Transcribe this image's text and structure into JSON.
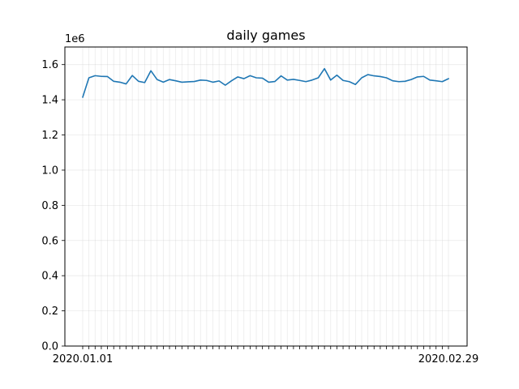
{
  "chart_data": {
    "type": "line",
    "title": "daily games",
    "xlabel": "",
    "ylabel": "",
    "y_offset_label": "1e6",
    "x": [
      "2020.01.01",
      "2020.01.02",
      "2020.01.03",
      "2020.01.04",
      "2020.01.05",
      "2020.01.06",
      "2020.01.07",
      "2020.01.08",
      "2020.01.09",
      "2020.01.10",
      "2020.01.11",
      "2020.01.12",
      "2020.01.13",
      "2020.01.14",
      "2020.01.15",
      "2020.01.16",
      "2020.01.17",
      "2020.01.18",
      "2020.01.19",
      "2020.01.20",
      "2020.01.21",
      "2020.01.22",
      "2020.01.23",
      "2020.01.24",
      "2020.01.25",
      "2020.01.26",
      "2020.01.27",
      "2020.01.28",
      "2020.01.29",
      "2020.01.30",
      "2020.01.31",
      "2020.02.01",
      "2020.02.02",
      "2020.02.03",
      "2020.02.04",
      "2020.02.05",
      "2020.02.06",
      "2020.02.07",
      "2020.02.08",
      "2020.02.09",
      "2020.02.10",
      "2020.02.11",
      "2020.02.12",
      "2020.02.13",
      "2020.02.14",
      "2020.02.15",
      "2020.02.16",
      "2020.02.17",
      "2020.02.18",
      "2020.02.19",
      "2020.02.20",
      "2020.02.21",
      "2020.02.22",
      "2020.02.23",
      "2020.02.24",
      "2020.02.25",
      "2020.02.26",
      "2020.02.27",
      "2020.02.28",
      "2020.02.29"
    ],
    "x_tick_labels_shown": [
      "2020.01.01",
      "2020.02.29"
    ],
    "series": [
      {
        "color": "#1f77b4",
        "values": [
          1.415,
          1.525,
          1.537,
          1.533,
          1.532,
          1.505,
          1.5,
          1.49,
          1.538,
          1.505,
          1.498,
          1.565,
          1.515,
          1.5,
          1.515,
          1.508,
          1.5,
          1.502,
          1.504,
          1.512,
          1.51,
          1.5,
          1.507,
          1.483,
          1.508,
          1.53,
          1.52,
          1.537,
          1.525,
          1.523,
          1.5,
          1.504,
          1.536,
          1.512,
          1.516,
          1.51,
          1.503,
          1.512,
          1.525,
          1.577,
          1.512,
          1.54,
          1.51,
          1.503,
          1.487,
          1.525,
          1.543,
          1.536,
          1.532,
          1.525,
          1.508,
          1.503,
          1.505,
          1.515,
          1.53,
          1.533,
          1.512,
          1.508,
          1.503,
          1.52
        ]
      }
    ],
    "y_ticks": [
      "0.0",
      "0.2",
      "0.4",
      "0.6",
      "0.8",
      "1.0",
      "1.2",
      "1.4",
      "1.6"
    ],
    "ylim": [
      0,
      1.7
    ],
    "grid": true
  }
}
